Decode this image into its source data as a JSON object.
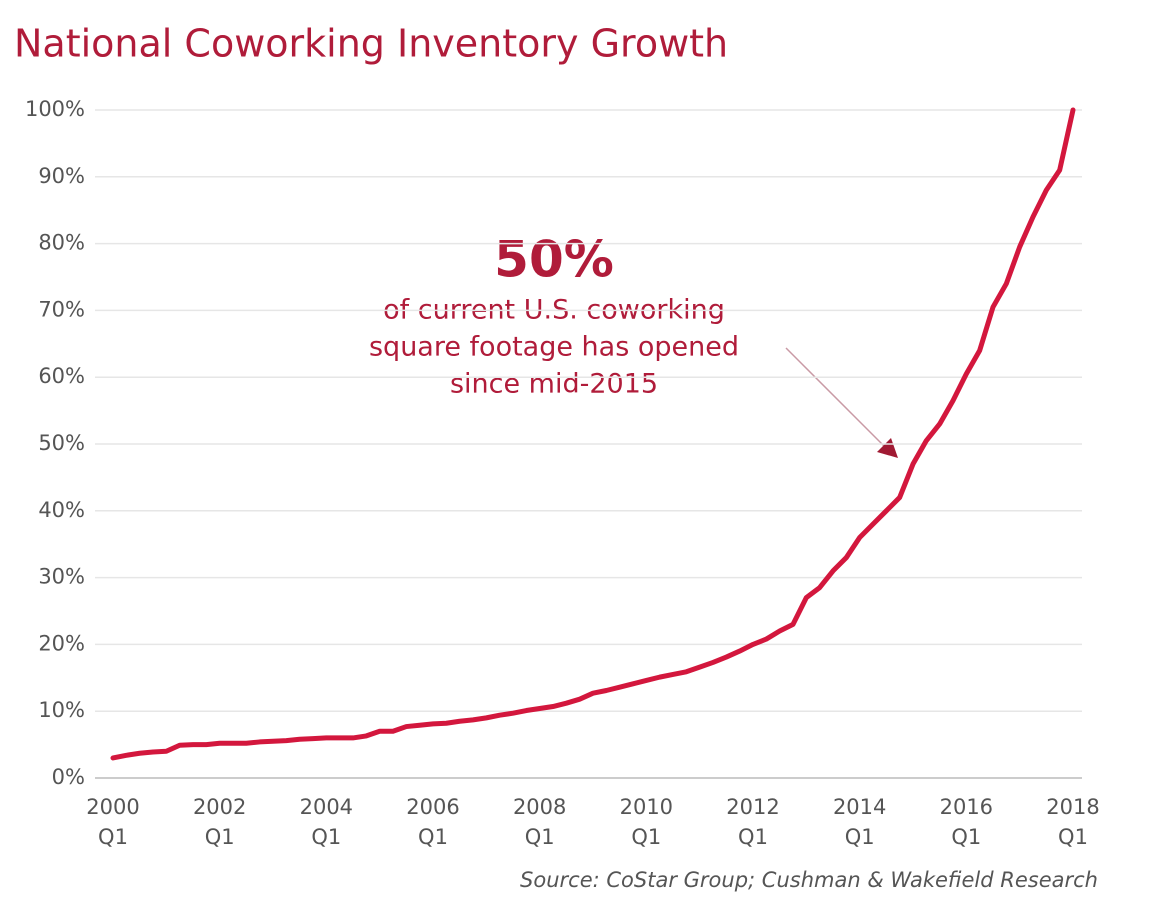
{
  "chart_data": {
    "type": "line",
    "title": "National Coworking Inventory Growth",
    "categories": [
      [
        "2000",
        "Q1"
      ],
      null,
      null,
      null,
      null,
      null,
      null,
      null,
      [
        "2002",
        "Q1"
      ],
      null,
      null,
      null,
      null,
      null,
      null,
      null,
      [
        "2004",
        "Q1"
      ],
      null,
      null,
      null,
      null,
      null,
      null,
      null,
      [
        "2006",
        "Q1"
      ],
      null,
      null,
      null,
      null,
      null,
      null,
      null,
      [
        "2008",
        "Q1"
      ],
      null,
      null,
      null,
      null,
      null,
      null,
      null,
      [
        "2010",
        "Q1"
      ],
      null,
      null,
      null,
      null,
      null,
      null,
      null,
      [
        "2012",
        "Q1"
      ],
      null,
      null,
      null,
      null,
      null,
      null,
      null,
      [
        "2014",
        "Q1"
      ],
      null,
      null,
      null,
      null,
      null,
      null,
      null,
      [
        "2016",
        "Q1"
      ],
      null,
      null,
      null,
      null,
      null,
      null,
      null,
      [
        "2018",
        "Q1"
      ]
    ],
    "values": [
      3,
      3.4,
      3.7,
      3.9,
      4,
      4.9,
      5,
      5,
      5.2,
      5.2,
      5.2,
      5.4,
      5.5,
      5.6,
      5.8,
      5.9,
      6,
      6,
      6,
      6.3,
      7,
      7,
      7.7,
      7.9,
      8.1,
      8.2,
      8.5,
      8.7,
      9,
      9.4,
      9.7,
      10.1,
      10.4,
      10.7,
      11.2,
      11.8,
      12.7,
      13.1,
      13.6,
      14.1,
      14.6,
      15.1,
      15.5,
      15.9,
      16.6,
      17.3,
      18.1,
      19,
      20,
      20.8,
      22,
      23,
      27,
      28.5,
      31,
      33,
      36,
      38,
      40,
      42,
      47,
      50.5,
      53,
      56.5,
      60.5,
      64,
      70.5,
      74,
      79.5,
      84,
      88,
      91,
      100
    ],
    "color": "#d3173d",
    "ylim": [
      0,
      100
    ],
    "yticks": [
      {
        "value": 0,
        "label": "0%"
      },
      {
        "value": 10,
        "label": "10%"
      },
      {
        "value": 20,
        "label": "20%"
      },
      {
        "value": 30,
        "label": "30%"
      },
      {
        "value": 40,
        "label": "40%"
      },
      {
        "value": 50,
        "label": "50%"
      },
      {
        "value": 60,
        "label": "60%"
      },
      {
        "value": 70,
        "label": "70%"
      },
      {
        "value": 80,
        "label": "80%"
      },
      {
        "value": 90,
        "label": "90%"
      },
      {
        "value": 100,
        "label": "100%"
      }
    ],
    "grid": true,
    "annotation": {
      "headline": "50%",
      "lines": [
        "of current U.S. coworking",
        "square footage has opened",
        "since mid-2015"
      ]
    },
    "source": "Source: CoStar Group; Cushman & Wakefield Research"
  }
}
